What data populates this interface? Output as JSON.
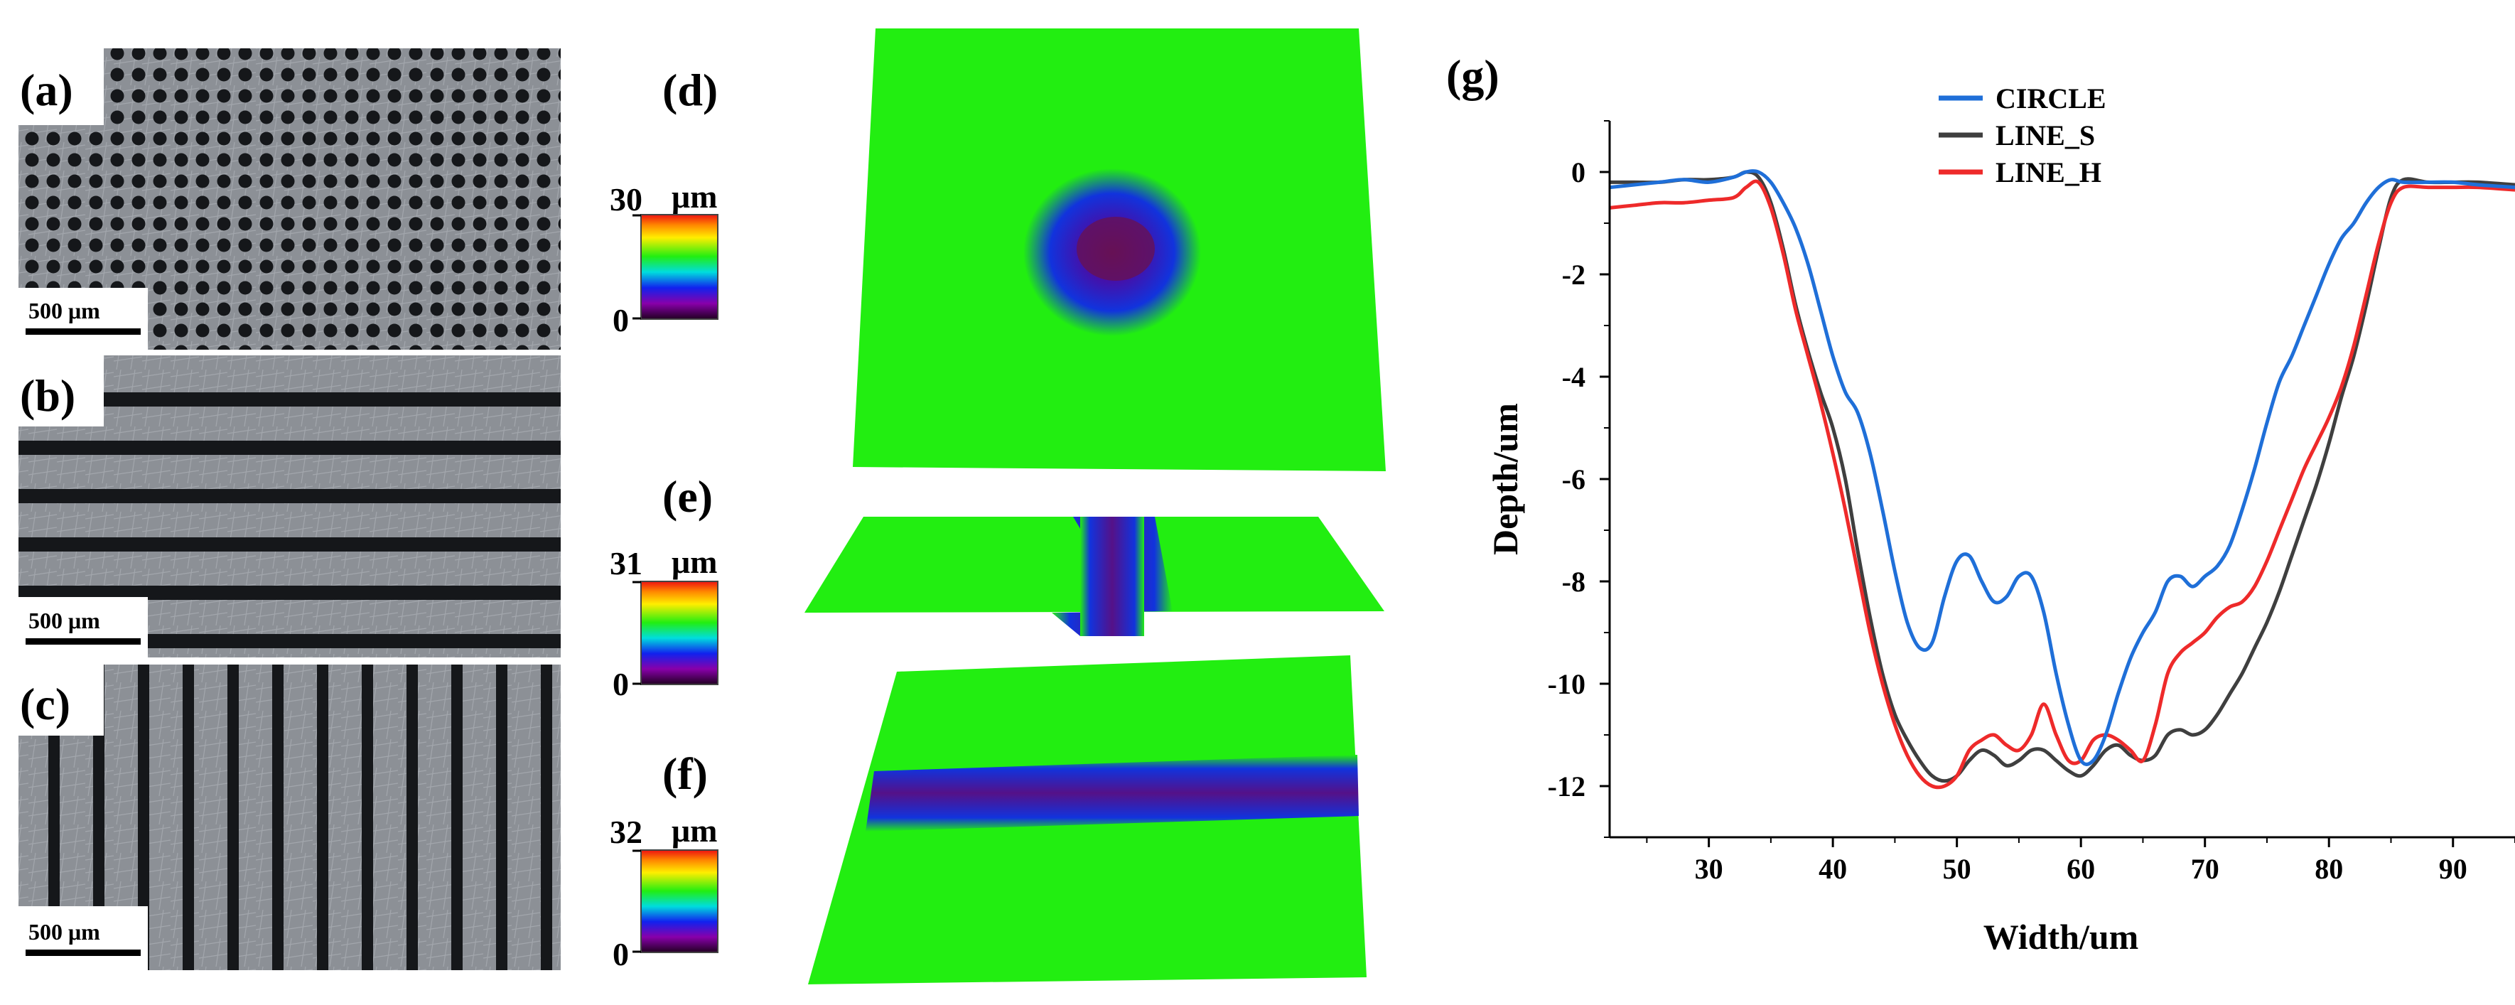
{
  "panels": {
    "a": "(a)",
    "b": "(b)",
    "c": "(c)",
    "d": "(d)",
    "e": "(e)",
    "f": "(f)",
    "g": "(g)"
  },
  "scale_bars": {
    "a": "500 μm",
    "b": "500 μm",
    "c": "500 μm"
  },
  "colorbars": [
    {
      "id": "d",
      "max": "30",
      "unit": "μm",
      "min": "0"
    },
    {
      "id": "e",
      "max": "31",
      "unit": "μm",
      "min": "0"
    },
    {
      "id": "f",
      "max": "32",
      "unit": "μm",
      "min": "0"
    }
  ],
  "colors": {
    "surface_green": "#22ee11",
    "groove_blue": "#1133cc",
    "groove_purple": "#661155",
    "micro_bg": "#8c9096",
    "micro_dark": "#15171a",
    "circle": "#1f6fd8",
    "line_s": "#3f3f3f",
    "line_h": "#ee2a2a"
  },
  "chart_data": {
    "type": "line",
    "title": "",
    "xlabel": "Width/um",
    "ylabel": "Depth/um",
    "xlim": [
      22,
      95
    ],
    "ylim": [
      -13,
      1
    ],
    "xticks": [
      30,
      40,
      50,
      60,
      70,
      80,
      90
    ],
    "yticks": [
      0,
      -2,
      -4,
      -6,
      -8,
      -10,
      -12
    ],
    "xtick_labels": [
      "30",
      "40",
      "50",
      "60",
      "70",
      "80",
      "90"
    ],
    "ytick_labels": [
      "0",
      "-2",
      "-4",
      "-6",
      "-8",
      "-10",
      "-12"
    ],
    "legend_position": "top-center",
    "series": [
      {
        "name": "CIRCLE",
        "x": [
          22,
          24,
          26,
          28,
          30,
          32,
          33,
          34,
          35,
          36,
          37,
          38,
          39,
          40,
          41,
          42,
          43,
          44,
          45,
          46,
          47,
          48,
          49,
          50,
          51,
          52,
          53,
          54,
          55,
          56,
          57,
          58,
          59,
          60,
          61,
          62,
          63,
          64,
          65,
          66,
          67,
          68,
          69,
          70,
          71,
          72,
          73,
          74,
          75,
          76,
          77,
          78,
          79,
          80,
          81,
          82,
          83,
          84,
          85,
          86,
          88,
          90,
          92,
          95
        ],
        "values": [
          -0.3,
          -0.25,
          -0.2,
          -0.15,
          -0.2,
          -0.1,
          0.0,
          0.0,
          -0.2,
          -0.6,
          -1.1,
          -1.8,
          -2.7,
          -3.6,
          -4.3,
          -4.7,
          -5.5,
          -6.6,
          -7.8,
          -8.8,
          -9.3,
          -9.2,
          -8.3,
          -7.6,
          -7.5,
          -8.0,
          -8.4,
          -8.3,
          -7.9,
          -7.9,
          -8.6,
          -9.8,
          -10.8,
          -11.5,
          -11.5,
          -11.0,
          -10.2,
          -9.5,
          -9.0,
          -8.6,
          -8.0,
          -7.9,
          -8.1,
          -7.9,
          -7.7,
          -7.3,
          -6.6,
          -5.8,
          -4.9,
          -4.1,
          -3.6,
          -3.0,
          -2.4,
          -1.8,
          -1.3,
          -1.0,
          -0.6,
          -0.3,
          -0.15,
          -0.2,
          -0.2,
          -0.2,
          -0.25,
          -0.3
        ]
      },
      {
        "name": "LINE_S",
        "x": [
          22,
          24,
          26,
          28,
          30,
          32,
          33,
          34,
          35,
          36,
          37,
          38,
          39,
          40,
          41,
          42,
          43,
          44,
          45,
          46,
          47,
          48,
          49,
          50,
          51,
          52,
          53,
          54,
          55,
          56,
          57,
          58,
          59,
          60,
          61,
          62,
          63,
          64,
          65,
          66,
          67,
          68,
          69,
          70,
          71,
          72,
          73,
          74,
          75,
          76,
          77,
          78,
          79,
          80,
          81,
          82,
          83,
          84,
          85,
          86,
          88,
          90,
          92,
          95
        ],
        "values": [
          -0.2,
          -0.2,
          -0.2,
          -0.15,
          -0.15,
          -0.1,
          0.0,
          -0.1,
          -0.6,
          -1.5,
          -2.6,
          -3.5,
          -4.3,
          -5.0,
          -6.0,
          -7.4,
          -8.7,
          -9.8,
          -10.6,
          -11.1,
          -11.5,
          -11.8,
          -11.9,
          -11.8,
          -11.5,
          -11.3,
          -11.4,
          -11.6,
          -11.5,
          -11.3,
          -11.3,
          -11.5,
          -11.7,
          -11.8,
          -11.6,
          -11.3,
          -11.2,
          -11.4,
          -11.5,
          -11.4,
          -11.0,
          -10.9,
          -11.0,
          -10.9,
          -10.6,
          -10.2,
          -9.8,
          -9.3,
          -8.8,
          -8.2,
          -7.5,
          -6.8,
          -6.1,
          -5.3,
          -4.4,
          -3.6,
          -2.6,
          -1.5,
          -0.5,
          -0.15,
          -0.2,
          -0.2,
          -0.2,
          -0.25
        ]
      },
      {
        "name": "LINE_H",
        "x": [
          22,
          24,
          26,
          28,
          30,
          32,
          33,
          34,
          35,
          36,
          37,
          38,
          39,
          40,
          41,
          42,
          43,
          44,
          45,
          46,
          47,
          48,
          49,
          50,
          51,
          52,
          53,
          54,
          55,
          56,
          57,
          58,
          59,
          60,
          61,
          62,
          63,
          64,
          65,
          66,
          67,
          68,
          69,
          70,
          71,
          72,
          73,
          74,
          75,
          76,
          77,
          78,
          79,
          80,
          81,
          82,
          83,
          84,
          85,
          86,
          88,
          90,
          92,
          95
        ],
        "values": [
          -0.7,
          -0.65,
          -0.6,
          -0.6,
          -0.55,
          -0.5,
          -0.3,
          -0.2,
          -0.7,
          -1.6,
          -2.7,
          -3.6,
          -4.5,
          -5.5,
          -6.6,
          -7.8,
          -9.0,
          -10.0,
          -10.8,
          -11.4,
          -11.8,
          -12.0,
          -12.0,
          -11.8,
          -11.3,
          -11.1,
          -11.0,
          -11.2,
          -11.3,
          -11.0,
          -10.4,
          -11.0,
          -11.5,
          -11.5,
          -11.1,
          -11.0,
          -11.1,
          -11.3,
          -11.5,
          -10.8,
          -9.8,
          -9.4,
          -9.2,
          -9.0,
          -8.7,
          -8.5,
          -8.4,
          -8.1,
          -7.6,
          -7.0,
          -6.4,
          -5.8,
          -5.3,
          -4.8,
          -4.2,
          -3.4,
          -2.4,
          -1.4,
          -0.6,
          -0.3,
          -0.3,
          -0.3,
          -0.3,
          -0.35
        ]
      }
    ]
  }
}
